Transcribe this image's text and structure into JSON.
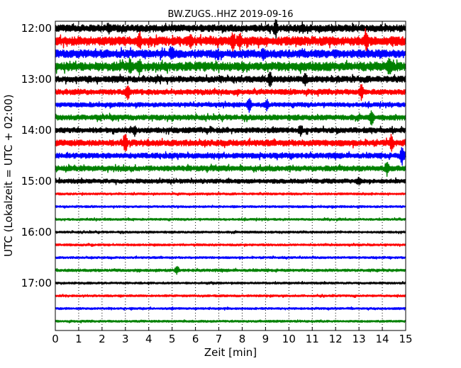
{
  "chart_data": {
    "type": "line",
    "title": "BW.ZUGS..HHZ 2019-09-16",
    "xlabel": "Zeit  [min]",
    "ylabel": "UTC (Lokalzeit = UTC + 02:00)",
    "xlim": [
      0,
      15
    ],
    "x_ticks": [
      "0",
      "1",
      "2",
      "3",
      "4",
      "5",
      "6",
      "7",
      "8",
      "9",
      "10",
      "11",
      "12",
      "13",
      "14",
      "15"
    ],
    "y_ticks": [
      "12:00",
      "13:00",
      "14:00",
      "15:00",
      "16:00",
      "17:00"
    ],
    "trace_interval_minutes": 15,
    "trace_count": 24,
    "trace_colors": [
      "#000000",
      "#ff0000",
      "#0000ff",
      "#008000"
    ],
    "grid": "vertical-dotted",
    "traces": [
      {
        "start": "12:00",
        "amplitude": 0.4,
        "spikes": [
          [
            2.3,
            0.5
          ],
          [
            9.45,
            1.0
          ],
          [
            10.6,
            0.5
          ]
        ]
      },
      {
        "start": "12:15",
        "amplitude": 0.5,
        "spikes": [
          [
            3.6,
            0.8
          ],
          [
            5.8,
            0.7
          ],
          [
            7.6,
            0.9
          ],
          [
            7.9,
            0.9
          ],
          [
            13.3,
            0.9
          ]
        ]
      },
      {
        "start": "12:30",
        "amplitude": 0.45,
        "spikes": [
          [
            5.0,
            0.6
          ],
          [
            8.9,
            0.6
          ]
        ]
      },
      {
        "start": "12:45",
        "amplitude": 0.5,
        "spikes": [
          [
            3.2,
            0.7
          ],
          [
            3.6,
            0.6
          ],
          [
            14.3,
            0.8
          ]
        ]
      },
      {
        "start": "13:00",
        "amplitude": 0.35,
        "spikes": [
          [
            9.2,
            0.9
          ],
          [
            10.7,
            0.6
          ]
        ]
      },
      {
        "start": "13:15",
        "amplitude": 0.3,
        "spikes": [
          [
            3.1,
            0.9
          ],
          [
            13.1,
            0.9
          ]
        ]
      },
      {
        "start": "13:30",
        "amplitude": 0.25,
        "spikes": [
          [
            8.3,
            0.9
          ],
          [
            9.05,
            0.6
          ]
        ]
      },
      {
        "start": "13:45",
        "amplitude": 0.3,
        "spikes": [
          [
            13.55,
            0.9
          ]
        ]
      },
      {
        "start": "14:00",
        "amplitude": 0.3,
        "spikes": [
          [
            3.4,
            0.5
          ],
          [
            10.5,
            0.5
          ]
        ]
      },
      {
        "start": "14:15",
        "amplitude": 0.35,
        "spikes": [
          [
            3.0,
            1.0
          ],
          [
            14.4,
            0.9
          ]
        ]
      },
      {
        "start": "14:30",
        "amplitude": 0.3,
        "spikes": [
          [
            14.85,
            1.0
          ]
        ]
      },
      {
        "start": "14:45",
        "amplitude": 0.3,
        "spikes": [
          [
            14.2,
            0.8
          ]
        ]
      },
      {
        "start": "15:00",
        "amplitude": 0.25,
        "spikes": [
          [
            13.0,
            0.4
          ]
        ]
      },
      {
        "start": "15:15",
        "amplitude": 0.12,
        "spikes": []
      },
      {
        "start": "15:30",
        "amplitude": 0.12,
        "spikes": []
      },
      {
        "start": "15:45",
        "amplitude": 0.12,
        "spikes": []
      },
      {
        "start": "16:00",
        "amplitude": 0.12,
        "spikes": []
      },
      {
        "start": "16:15",
        "amplitude": 0.12,
        "spikes": []
      },
      {
        "start": "16:30",
        "amplitude": 0.12,
        "spikes": []
      },
      {
        "start": "16:45",
        "amplitude": 0.15,
        "spikes": [
          [
            5.2,
            0.5
          ]
        ]
      },
      {
        "start": "17:00",
        "amplitude": 0.12,
        "spikes": []
      },
      {
        "start": "17:15",
        "amplitude": 0.12,
        "spikes": []
      },
      {
        "start": "17:30",
        "amplitude": 0.12,
        "spikes": []
      },
      {
        "start": "17:45",
        "amplitude": 0.12,
        "spikes": []
      }
    ]
  }
}
